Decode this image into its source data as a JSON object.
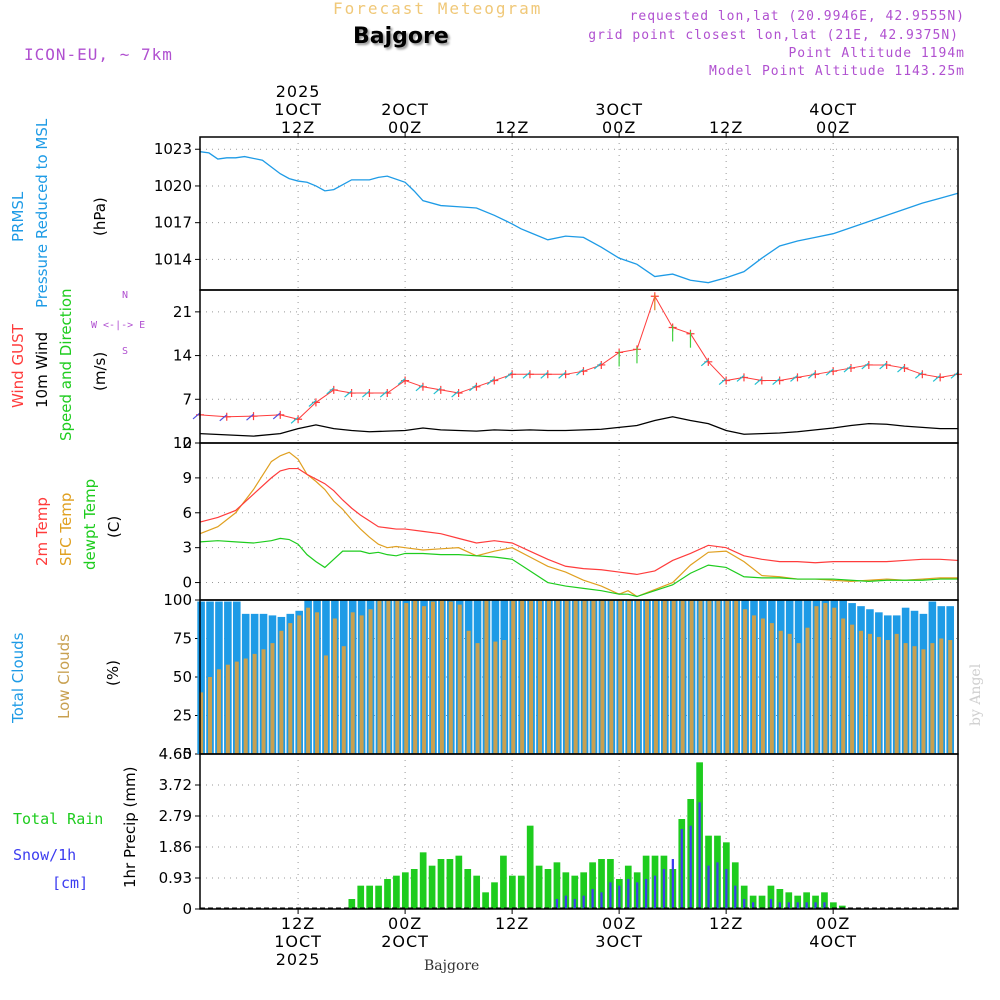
{
  "header": {
    "subtitle": "Forecast Meteogram",
    "location": "Bajgore",
    "model": "ICON-EU, ~ 7km",
    "requested": "requested lon,lat (20.9946E, 42.9555N)",
    "grid_point": "grid point closest lon,lat (21E, 42.9375N)",
    "point_altitude": "Point Altitude 1194m",
    "model_altitude": "Model Point Altitude 1143.25m"
  },
  "footer": {
    "location": "Bajgore",
    "credit": "by Angel"
  },
  "colors": {
    "pressure": "#1e9be6",
    "gust": "#ff3c3c",
    "wind": "#000000",
    "temp2m": "#ff3c3c",
    "sfctemp": "#e0a020",
    "dewpt": "#1ecc1e",
    "totalcloud": "#1e9be6",
    "lowcloud": "#c8a050",
    "rain": "#1ecc1e",
    "snow": "#3c3cf0",
    "compass": "#b050d0"
  },
  "chart_data": {
    "type": "meteogram",
    "title": "Forecast Meteogram",
    "x_hours_start": -11,
    "x_hours_end": 74,
    "top_axis": [
      {
        "hour": 0,
        "lines": [
          "2025",
          "1OCT",
          "12Z"
        ]
      },
      {
        "hour": 12,
        "lines": [
          "2OCT",
          "00Z"
        ]
      },
      {
        "hour": 24,
        "lines": [
          "12Z"
        ]
      },
      {
        "hour": 36,
        "lines": [
          "3OCT",
          "00Z"
        ]
      },
      {
        "hour": 48,
        "lines": [
          "12Z"
        ]
      },
      {
        "hour": 60,
        "lines": [
          "4OCT",
          "00Z"
        ]
      }
    ],
    "bottom_axis": [
      {
        "hour": 0,
        "lines": [
          "12Z",
          "1OCT",
          "2025"
        ]
      },
      {
        "hour": 12,
        "lines": [
          "00Z",
          "2OCT"
        ]
      },
      {
        "hour": 24,
        "lines": [
          "12Z"
        ]
      },
      {
        "hour": 36,
        "lines": [
          "00Z",
          "3OCT"
        ]
      },
      {
        "hour": 48,
        "lines": [
          "12Z"
        ]
      },
      {
        "hour": 60,
        "lines": [
          "00Z",
          "4OCT"
        ]
      }
    ],
    "pressure": {
      "labels": [
        "PRMSL",
        "Pressure Reduced to MSL"
      ],
      "unit": "(hPa)",
      "ylim": [
        1011.5,
        1024
      ],
      "yticks": [
        1014,
        1017,
        1020,
        1023
      ],
      "x": [
        -11,
        -10,
        -9,
        -8,
        -7,
        -6,
        -4,
        -2,
        -1,
        0,
        1,
        2,
        3,
        4,
        6,
        8,
        9,
        10,
        12,
        13,
        14,
        16,
        18,
        20,
        22,
        24,
        25,
        26,
        28,
        30,
        32,
        34,
        36,
        38,
        40,
        42,
        44,
        46,
        48,
        50,
        52,
        54,
        56,
        58,
        60,
        62,
        64,
        66,
        68,
        70,
        72,
        74
      ],
      "values": [
        1022.8,
        1022.7,
        1022.2,
        1022.3,
        1022.3,
        1022.4,
        1022.1,
        1021.0,
        1020.6,
        1020.4,
        1020.3,
        1020.0,
        1019.6,
        1019.7,
        1020.5,
        1020.5,
        1020.7,
        1020.8,
        1020.3,
        1019.6,
        1018.8,
        1018.4,
        1018.3,
        1018.2,
        1017.6,
        1016.9,
        1016.5,
        1016.2,
        1015.6,
        1015.9,
        1015.8,
        1015.0,
        1014.1,
        1013.6,
        1012.6,
        1012.8,
        1012.3,
        1012.1,
        1012.5,
        1013.0,
        1014.1,
        1015.1,
        1015.5,
        1015.8,
        1016.1,
        1016.6,
        1017.1,
        1017.6,
        1018.1,
        1018.6,
        1019.0,
        1019.4
      ]
    },
    "wind": {
      "labels": [
        "Wind GUST",
        "10m Wind",
        "Speed and Direction"
      ],
      "unit": "(m/s)",
      "compass": [
        "N",
        "W <-|-> E",
        "S"
      ],
      "ylim": [
        0,
        24.5
      ],
      "yticks": [
        0,
        7,
        14,
        21
      ],
      "x": [
        -11,
        -8,
        -5,
        -2,
        0,
        2,
        4,
        6,
        8,
        10,
        12,
        14,
        16,
        18,
        20,
        22,
        24,
        26,
        28,
        30,
        32,
        34,
        36,
        38,
        40,
        42,
        44,
        46,
        48,
        50,
        52,
        54,
        56,
        58,
        60,
        62,
        64,
        66,
        68,
        70,
        72,
        74
      ],
      "speed": [
        1.5,
        1.3,
        1.1,
        1.5,
        2.3,
        2.9,
        2.3,
        2.0,
        1.8,
        1.9,
        2.0,
        2.4,
        2.1,
        2.0,
        1.9,
        2.1,
        2.0,
        2.1,
        2.0,
        2.0,
        2.1,
        2.2,
        2.5,
        2.8,
        3.6,
        4.2,
        3.6,
        3.1,
        2.0,
        1.4,
        1.5,
        1.6,
        1.8,
        2.1,
        2.4,
        2.8,
        3.1,
        3.0,
        2.7,
        2.5,
        2.3,
        2.3
      ],
      "gust": [
        4.5,
        4.2,
        4.3,
        4.5,
        3.8,
        6.5,
        8.5,
        8.0,
        8.0,
        8.0,
        10.0,
        9.0,
        8.5,
        8.0,
        9.0,
        10.0,
        11.0,
        11.0,
        11.0,
        11.0,
        11.5,
        12.5,
        14.5,
        15.0,
        23.5,
        18.5,
        17.5,
        13.0,
        10.0,
        10.5,
        10.0,
        10.0,
        10.5,
        11.0,
        11.5,
        12.0,
        12.5,
        12.5,
        12.0,
        11.0,
        10.5,
        11.0
      ]
    },
    "temperature": {
      "labels": [
        "2m Temp",
        "SFC Temp",
        "dewpt Temp"
      ],
      "unit": "(C)",
      "ylim": [
        -1.5,
        12
      ],
      "yticks": [
        0,
        3,
        6,
        9,
        12
      ],
      "x": [
        -11,
        -9,
        -7,
        -5,
        -3,
        -2,
        -1,
        0,
        1,
        2,
        3,
        4,
        5,
        6,
        7,
        8,
        9,
        10,
        11,
        12,
        14,
        16,
        18,
        20,
        22,
        24,
        26,
        28,
        30,
        32,
        34,
        36,
        37,
        38,
        40,
        42,
        44,
        46,
        48,
        50,
        52,
        54,
        56,
        58,
        60,
        62,
        64,
        66,
        68,
        70,
        72,
        74
      ],
      "temp2m": [
        5.2,
        5.6,
        6.2,
        7.6,
        9.0,
        9.6,
        9.8,
        9.8,
        9.3,
        8.9,
        8.5,
        7.9,
        7.1,
        6.4,
        5.8,
        5.3,
        4.8,
        4.7,
        4.6,
        4.6,
        4.4,
        4.2,
        3.8,
        3.4,
        3.6,
        3.4,
        2.7,
        2.0,
        1.4,
        1.2,
        1.1,
        0.9,
        0.8,
        0.7,
        1.0,
        1.9,
        2.5,
        3.2,
        3.0,
        2.3,
        2.0,
        1.8,
        1.8,
        1.7,
        1.8,
        1.8,
        1.8,
        1.8,
        1.9,
        2.0,
        2.0,
        1.9
      ],
      "sfctemp": [
        4.2,
        4.8,
        6.0,
        8.0,
        10.4,
        10.9,
        11.2,
        10.6,
        9.3,
        8.7,
        8.0,
        7.0,
        6.3,
        5.4,
        4.6,
        3.9,
        3.3,
        3.0,
        3.1,
        3.0,
        2.8,
        2.9,
        3.0,
        2.3,
        2.7,
        3.0,
        2.2,
        1.4,
        0.9,
        0.2,
        -0.3,
        -1.0,
        -0.7,
        -1.2,
        -0.6,
        0.0,
        1.5,
        2.6,
        2.7,
        1.8,
        0.6,
        0.5,
        0.3,
        0.3,
        0.2,
        0.1,
        0.2,
        0.3,
        0.2,
        0.3,
        0.4,
        0.4
      ],
      "dewpt": [
        3.5,
        3.6,
        3.5,
        3.4,
        3.6,
        3.8,
        3.7,
        3.3,
        2.4,
        1.8,
        1.3,
        2.0,
        2.7,
        2.7,
        2.7,
        2.5,
        2.6,
        2.4,
        2.3,
        2.5,
        2.5,
        2.4,
        2.4,
        2.3,
        2.2,
        2.0,
        1.0,
        0.0,
        -0.3,
        -0.5,
        -0.7,
        -1.0,
        -1.0,
        -1.2,
        -0.7,
        -0.2,
        0.8,
        1.5,
        1.3,
        0.5,
        0.4,
        0.4,
        0.3,
        0.3,
        0.3,
        0.2,
        0.1,
        0.2,
        0.2,
        0.2,
        0.3,
        0.3
      ]
    },
    "clouds": {
      "labels": [
        "Total Clouds",
        "Low Clouds"
      ],
      "unit": "(%)",
      "ylim": [
        0,
        100
      ],
      "yticks": [
        0,
        25,
        50,
        75,
        100
      ],
      "x_start": -11,
      "step": 1,
      "total": [
        99,
        99,
        99,
        99,
        99,
        91,
        91,
        91,
        90,
        89,
        91,
        93,
        100,
        100,
        100,
        100,
        100,
        100,
        100,
        100,
        100,
        100,
        100,
        100,
        100,
        100,
        100,
        100,
        100,
        100,
        100,
        100,
        100,
        100,
        100,
        100,
        100,
        100,
        100,
        100,
        100,
        100,
        100,
        100,
        100,
        100,
        100,
        100,
        100,
        100,
        100,
        100,
        100,
        100,
        100,
        100,
        100,
        100,
        100,
        100,
        100,
        100,
        100,
        100,
        100,
        100,
        100,
        100,
        100,
        100,
        100,
        100,
        100,
        98,
        96,
        94,
        92,
        90,
        90,
        95,
        93,
        91,
        99,
        96,
        96,
        88
      ],
      "low": [
        40,
        50,
        55,
        58,
        60,
        62,
        65,
        68,
        72,
        80,
        85,
        90,
        95,
        92,
        64,
        88,
        70,
        92,
        90,
        94,
        100,
        100,
        100,
        98,
        100,
        96,
        99,
        100,
        99,
        97,
        80,
        72,
        100,
        73,
        74,
        100,
        100,
        100,
        100,
        100,
        100,
        100,
        100,
        100,
        100,
        100,
        100,
        100,
        100,
        100,
        100,
        100,
        100,
        100,
        100,
        100,
        100,
        100,
        100,
        100,
        100,
        94,
        90,
        88,
        85,
        80,
        78,
        72,
        82,
        96,
        98,
        95,
        88,
        84,
        80,
        78,
        76,
        74,
        78,
        72,
        70,
        68,
        72,
        75,
        74,
        70
      ]
    },
    "precip": {
      "labels": [
        "Total  Rain",
        "Snow/1h",
        "[cm]"
      ],
      "unit": "1hr Precip (mm)",
      "ylim": [
        0,
        4.65
      ],
      "yticks": [
        0,
        0.93,
        1.86,
        2.79,
        3.72,
        4.65
      ],
      "x_start": -11,
      "step": 1,
      "rain": [
        0,
        0,
        0,
        0,
        0,
        0,
        0,
        0,
        0,
        0,
        0,
        0,
        0,
        0,
        0,
        0,
        0,
        0.3,
        0.7,
        0.7,
        0.7,
        0.9,
        1.0,
        1.1,
        1.2,
        1.7,
        1.3,
        1.5,
        1.5,
        1.6,
        1.2,
        1.0,
        0.5,
        0.8,
        1.6,
        1.0,
        1.0,
        2.5,
        1.3,
        1.2,
        1.4,
        1.1,
        1.0,
        1.1,
        1.4,
        1.5,
        1.5,
        0.9,
        1.3,
        1.1,
        1.6,
        1.6,
        1.6,
        1.2,
        2.7,
        3.3,
        4.4,
        2.2,
        2.2,
        2.0,
        1.4,
        0.7,
        0.4,
        0.4,
        0.7,
        0.6,
        0.5,
        0.4,
        0.5,
        0.4,
        0.5,
        0.2,
        0.1,
        0,
        0,
        0,
        0,
        0,
        0,
        0,
        0,
        0,
        0,
        0,
        0,
        0
      ],
      "snow": [
        0,
        0,
        0,
        0,
        0,
        0,
        0,
        0,
        0,
        0,
        0,
        0,
        0,
        0,
        0,
        0,
        0,
        0,
        0,
        0,
        0,
        0,
        0,
        0,
        0,
        0,
        0,
        0,
        0,
        0,
        0,
        0,
        0,
        0,
        0,
        0,
        0,
        0,
        0,
        0,
        0.3,
        0.4,
        0.3,
        0.4,
        0.6,
        0.5,
        0.8,
        0.7,
        0.9,
        0.8,
        0.9,
        1.0,
        1.2,
        1.5,
        2.4,
        2.5,
        3.2,
        1.3,
        1.4,
        1.2,
        0.7,
        0.3,
        0.2,
        0,
        0.3,
        0.2,
        0.2,
        0.2,
        0.2,
        0.2,
        0.2,
        0,
        0,
        0,
        0,
        0,
        0,
        0,
        0,
        0,
        0,
        0,
        0,
        0,
        0,
        0
      ]
    }
  }
}
